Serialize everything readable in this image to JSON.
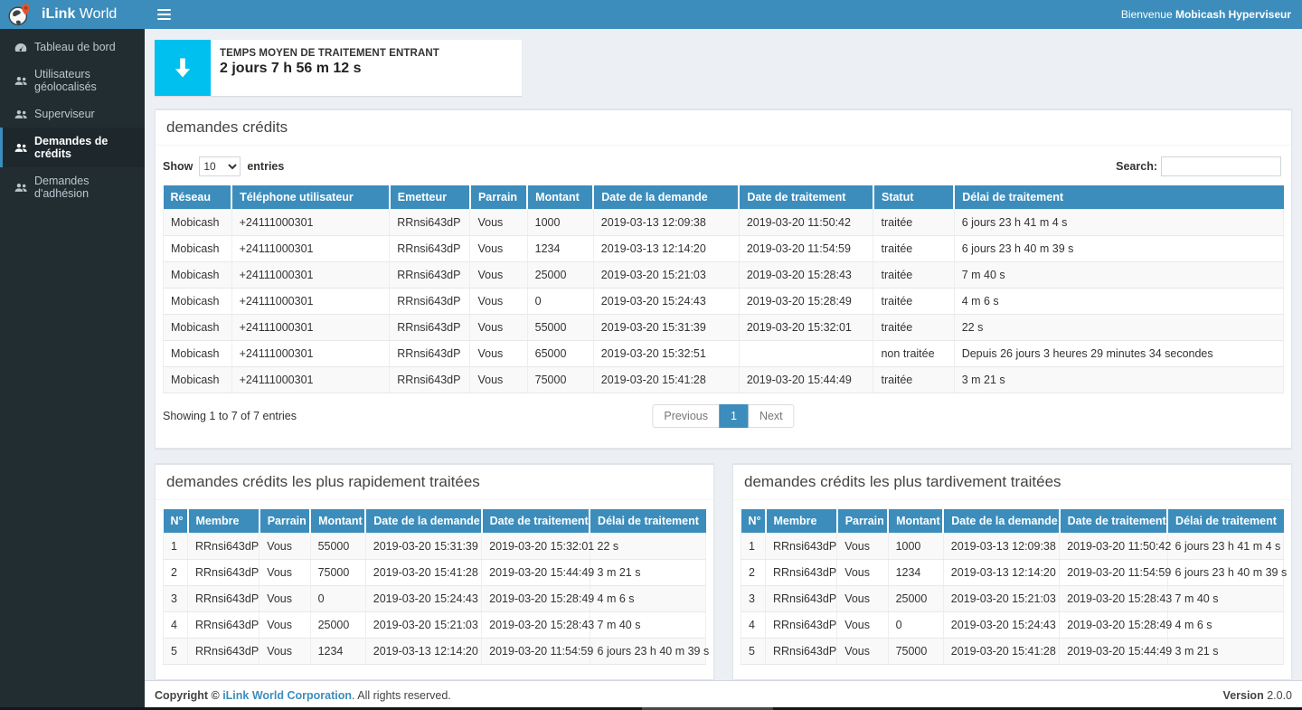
{
  "colors": {
    "accent": "#3c8dbc",
    "sidebar-bg": "#222d32",
    "info-icon-bg": "#00c0ef"
  },
  "sidebar": {
    "brand_bold": "iLink",
    "brand_light": " World",
    "items": [
      {
        "label": "Tableau de bord",
        "icon": "dashboard-icon",
        "active": false
      },
      {
        "label": "Utilisateurs géolocalisés",
        "icon": "users-icon",
        "active": false
      },
      {
        "label": "Superviseur",
        "icon": "users-icon",
        "active": false
      },
      {
        "label": "Demandes de crédits",
        "icon": "users-icon",
        "active": true
      },
      {
        "label": "Demandes d'adhésion",
        "icon": "users-icon",
        "active": false
      }
    ]
  },
  "navbar": {
    "menu_icon": "hamburger-icon",
    "welcome_prefix": "Bienvenue ",
    "welcome_user": "Mobicash Hyperviseur"
  },
  "info_box": {
    "icon": "arrow-down-icon",
    "title": "TEMPS MOYEN DE TRAITEMENT ENTRANT",
    "value": "2 jours 7 h 56 m 12 s"
  },
  "credits_panel": {
    "title": "demandes crédits",
    "show_label": "Show",
    "entries_label": "entries",
    "page_size": "10",
    "search_label": "Search:",
    "search_value": "",
    "columns": [
      "Réseau",
      "Téléphone utilisateur",
      "Emetteur",
      "Parrain",
      "Montant",
      "Date de la demande",
      "Date de traitement",
      "Statut",
      "Délai de traitement"
    ],
    "rows": [
      [
        "Mobicash",
        "+24111000301",
        "RRnsi643dP",
        "Vous",
        "1000",
        "2019-03-13 12:09:38",
        "2019-03-20 11:50:42",
        "traitée",
        "6 jours 23 h 41 m 4 s"
      ],
      [
        "Mobicash",
        "+24111000301",
        "RRnsi643dP",
        "Vous",
        "1234",
        "2019-03-13 12:14:20",
        "2019-03-20 11:54:59",
        "traitée",
        "6 jours 23 h 40 m 39 s"
      ],
      [
        "Mobicash",
        "+24111000301",
        "RRnsi643dP",
        "Vous",
        "25000",
        "2019-03-20 15:21:03",
        "2019-03-20 15:28:43",
        "traitée",
        "7 m 40 s"
      ],
      [
        "Mobicash",
        "+24111000301",
        "RRnsi643dP",
        "Vous",
        "0",
        "2019-03-20 15:24:43",
        "2019-03-20 15:28:49",
        "traitée",
        "4 m 6 s"
      ],
      [
        "Mobicash",
        "+24111000301",
        "RRnsi643dP",
        "Vous",
        "55000",
        "2019-03-20 15:31:39",
        "2019-03-20 15:32:01",
        "traitée",
        "22 s"
      ],
      [
        "Mobicash",
        "+24111000301",
        "RRnsi643dP",
        "Vous",
        "65000",
        "2019-03-20 15:32:51",
        "",
        "non traitée",
        "Depuis 26 jours 3 heures 29 minutes 34 secondes"
      ],
      [
        "Mobicash",
        "+24111000301",
        "RRnsi643dP",
        "Vous",
        "75000",
        "2019-03-20 15:41:28",
        "2019-03-20 15:44:49",
        "traitée",
        "3 m 21 s"
      ]
    ],
    "summary": "Showing 1 to 7 of 7 entries",
    "pagination": {
      "previous": "Previous",
      "page": "1",
      "next": "Next"
    }
  },
  "fastest_panel": {
    "title": "demandes crédits les plus rapidement traitées",
    "columns": [
      "N°",
      "Membre",
      "Parrain",
      "Montant",
      "Date de la demande",
      "Date de traitement",
      "Délai de traitement"
    ],
    "rows": [
      [
        "1",
        "RRnsi643dP",
        "Vous",
        "55000",
        "2019-03-20 15:31:39",
        "2019-03-20 15:32:01",
        "22 s"
      ],
      [
        "2",
        "RRnsi643dP",
        "Vous",
        "75000",
        "2019-03-20 15:41:28",
        "2019-03-20 15:44:49",
        "3 m 21 s"
      ],
      [
        "3",
        "RRnsi643dP",
        "Vous",
        "0",
        "2019-03-20 15:24:43",
        "2019-03-20 15:28:49",
        "4 m 6 s"
      ],
      [
        "4",
        "RRnsi643dP",
        "Vous",
        "25000",
        "2019-03-20 15:21:03",
        "2019-03-20 15:28:43",
        "7 m 40 s"
      ],
      [
        "5",
        "RRnsi643dP",
        "Vous",
        "1234",
        "2019-03-13 12:14:20",
        "2019-03-20 11:54:59",
        "6 jours 23 h 40 m 39 s"
      ]
    ]
  },
  "slowest_panel": {
    "title": "demandes crédits les plus tardivement traitées",
    "columns": [
      "N°",
      "Membre",
      "Parrain",
      "Montant",
      "Date de la demande",
      "Date de traitement",
      "Délai de traitement"
    ],
    "rows": [
      [
        "1",
        "RRnsi643dP",
        "Vous",
        "1000",
        "2019-03-13 12:09:38",
        "2019-03-20 11:50:42",
        "6 jours 23 h 41 m 4 s"
      ],
      [
        "2",
        "RRnsi643dP",
        "Vous",
        "1234",
        "2019-03-13 12:14:20",
        "2019-03-20 11:54:59",
        "6 jours 23 h 40 m 39 s"
      ],
      [
        "3",
        "RRnsi643dP",
        "Vous",
        "25000",
        "2019-03-20 15:21:03",
        "2019-03-20 15:28:43",
        "7 m 40 s"
      ],
      [
        "4",
        "RRnsi643dP",
        "Vous",
        "0",
        "2019-03-20 15:24:43",
        "2019-03-20 15:28:49",
        "4 m 6 s"
      ],
      [
        "5",
        "RRnsi643dP",
        "Vous",
        "75000",
        "2019-03-20 15:41:28",
        "2019-03-20 15:44:49",
        "3 m 21 s"
      ]
    ]
  },
  "footer": {
    "copyright_prefix": "Copyright © ",
    "company": "iLink World Corporation",
    "copyright_suffix": ". All rights reserved.",
    "version_label": "Version",
    "version_value": " 2.0.0"
  }
}
